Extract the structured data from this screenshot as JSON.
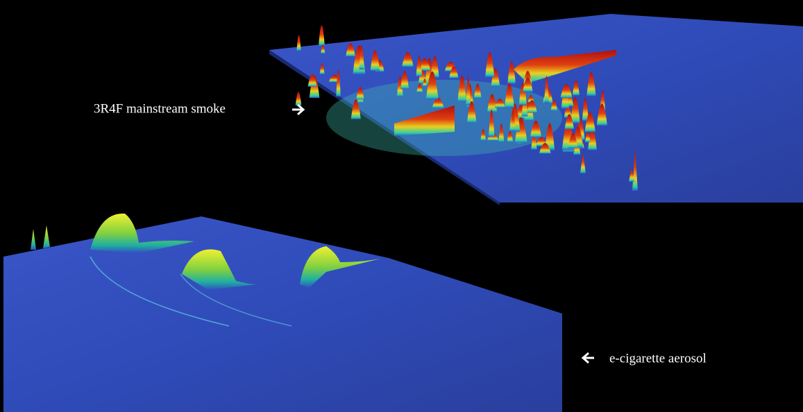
{
  "labels": {
    "top": "3R4F mainstream smoke",
    "bottom": "e-cigarette aerosol"
  }
}
